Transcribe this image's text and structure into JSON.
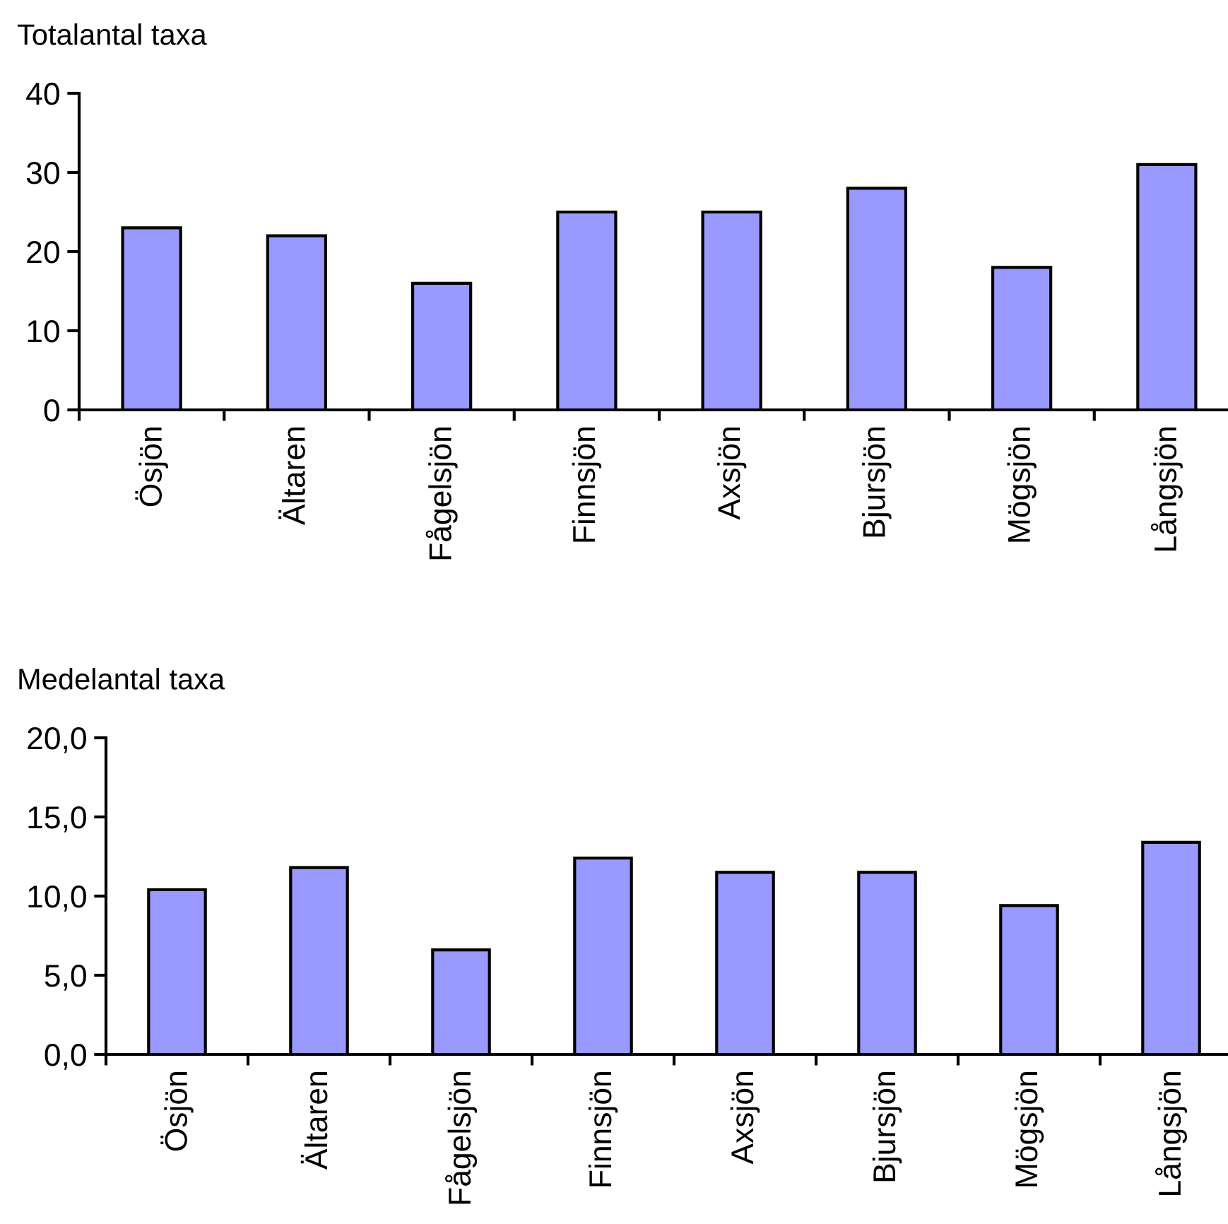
{
  "chart_data": [
    {
      "type": "bar",
      "ylabel": "Totalantal taxa",
      "categories": [
        "Ösjön",
        "Ältaren",
        "Fågelsjön",
        "Finnsjön",
        "Axsjön",
        "Bjursjön",
        "Mögsjön",
        "Långsjön"
      ],
      "values": [
        23,
        22,
        16,
        25,
        25,
        28,
        18,
        31
      ],
      "color": "#9999ff",
      "ylim": [
        0,
        40
      ],
      "yticks": [
        0,
        10,
        20,
        30,
        40
      ],
      "grid": false,
      "legend": false
    },
    {
      "type": "bar",
      "ylabel": "Medelantal taxa",
      "categories": [
        "Ösjön",
        "Ältaren",
        "Fågelsjön",
        "Finnsjön",
        "Axsjön",
        "Bjursjön",
        "Mögsjön",
        "Långsjön"
      ],
      "values": [
        10.4,
        11.8,
        6.6,
        12.4,
        11.5,
        11.5,
        9.4,
        13.4
      ],
      "color": "#9999ff",
      "ylim": [
        0,
        20
      ],
      "yticks": [
        {
          "value": 0,
          "label": "0,0"
        },
        {
          "value": 5,
          "label": "5,0"
        },
        {
          "value": 10,
          "label": "10,0"
        },
        {
          "value": 15,
          "label": "15,0"
        },
        {
          "value": 20,
          "label": "20,0"
        }
      ],
      "grid": false,
      "legend": false
    }
  ]
}
